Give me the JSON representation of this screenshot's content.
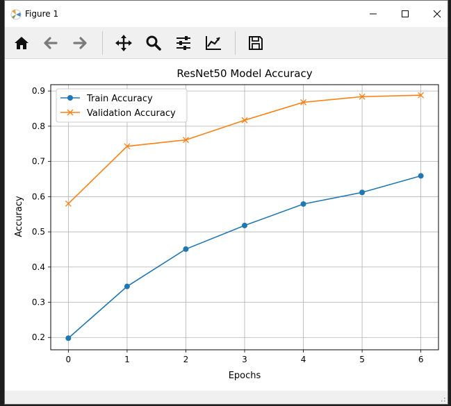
{
  "window": {
    "title": "Figure 1"
  },
  "toolbar": {
    "tools": [
      "home-icon",
      "back-arrow-icon",
      "forward-arrow-icon",
      "pan-icon",
      "zoom-icon",
      "configure-subplots-icon",
      "edit-axes-icon",
      "save-icon"
    ]
  },
  "chart_data": {
    "type": "line",
    "title": "ResNet50 Model Accuracy",
    "xlabel": "Epochs",
    "ylabel": "Accuracy",
    "x": [
      0,
      1,
      2,
      3,
      4,
      5,
      6
    ],
    "xticks": [
      "0",
      "1",
      "2",
      "3",
      "4",
      "5",
      "6"
    ],
    "yticks": [
      "0.2",
      "0.3",
      "0.4",
      "0.5",
      "0.6",
      "0.7",
      "0.8",
      "0.9"
    ],
    "xlim": [
      -0.3,
      6.3
    ],
    "ylim": [
      0.165,
      0.918
    ],
    "grid": true,
    "legend_position": "upper-left",
    "series": [
      {
        "name": "Train Accuracy",
        "color": "#1f77b4",
        "marker": "circle",
        "values": [
          0.198,
          0.345,
          0.451,
          0.518,
          0.579,
          0.612,
          0.659
        ]
      },
      {
        "name": "Validation Accuracy",
        "color": "#ff7f0e",
        "marker": "x",
        "values": [
          0.58,
          0.743,
          0.761,
          0.817,
          0.868,
          0.884,
          0.888
        ]
      }
    ]
  }
}
